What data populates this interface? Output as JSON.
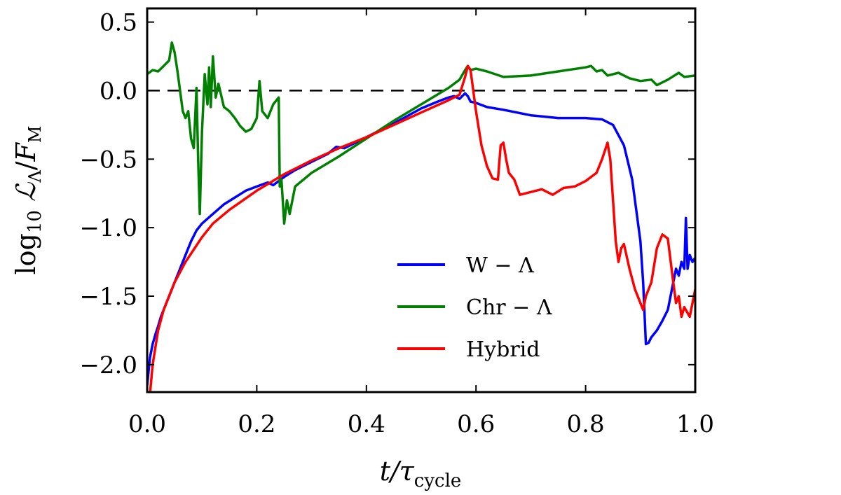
{
  "chart_data": {
    "type": "line",
    "title": "",
    "xlabel": {
      "base": "t/τ",
      "sub": "cycle"
    },
    "ylabel": {
      "prefix": "log",
      "prefix_sub": "10",
      "num": "ℒ",
      "num_sub": "Λ",
      "den": "F",
      "den_sub": "M"
    },
    "xlim": [
      0.0,
      1.0
    ],
    "ylim": [
      -2.2,
      0.6
    ],
    "xticks": [
      0.0,
      0.2,
      0.4,
      0.6,
      0.8,
      1.0
    ],
    "xtick_labels": [
      "0.0",
      "0.2",
      "0.4",
      "0.6",
      "0.8",
      "1.0"
    ],
    "yticks": [
      -2.0,
      -1.5,
      -1.0,
      -0.5,
      0.0,
      0.5
    ],
    "ytick_labels": [
      "−2.0",
      "−1.5",
      "−1.0",
      "−0.5",
      "0.0",
      "0.5"
    ],
    "reference_line": {
      "y": 0.0,
      "style": "dashed",
      "color": "#000000"
    },
    "legend": {
      "position": "lower-center"
    },
    "series": [
      {
        "name": "W − Λ",
        "color": "#0000ff",
        "points": [
          [
            0.0,
            -2.15
          ],
          [
            0.005,
            -1.95
          ],
          [
            0.01,
            -1.85
          ],
          [
            0.015,
            -1.78
          ],
          [
            0.02,
            -1.72
          ],
          [
            0.025,
            -1.65
          ],
          [
            0.03,
            -1.6
          ],
          [
            0.04,
            -1.5
          ],
          [
            0.05,
            -1.4
          ],
          [
            0.06,
            -1.3
          ],
          [
            0.07,
            -1.2
          ],
          [
            0.08,
            -1.1
          ],
          [
            0.09,
            -1.02
          ],
          [
            0.1,
            -0.97
          ],
          [
            0.12,
            -0.9
          ],
          [
            0.14,
            -0.83
          ],
          [
            0.16,
            -0.78
          ],
          [
            0.18,
            -0.73
          ],
          [
            0.2,
            -0.7
          ],
          [
            0.22,
            -0.67
          ],
          [
            0.23,
            -0.69
          ],
          [
            0.25,
            -0.63
          ],
          [
            0.27,
            -0.58
          ],
          [
            0.3,
            -0.52
          ],
          [
            0.33,
            -0.46
          ],
          [
            0.345,
            -0.41
          ],
          [
            0.36,
            -0.42
          ],
          [
            0.4,
            -0.34
          ],
          [
            0.45,
            -0.24
          ],
          [
            0.5,
            -0.13
          ],
          [
            0.53,
            -0.08
          ],
          [
            0.55,
            -0.05
          ],
          [
            0.56,
            -0.04
          ],
          [
            0.57,
            -0.06
          ],
          [
            0.58,
            -0.02
          ],
          [
            0.585,
            -0.04
          ],
          [
            0.59,
            -0.08
          ],
          [
            0.6,
            -0.09
          ],
          [
            0.62,
            -0.12
          ],
          [
            0.65,
            -0.14
          ],
          [
            0.7,
            -0.18
          ],
          [
            0.75,
            -0.2
          ],
          [
            0.8,
            -0.2
          ],
          [
            0.83,
            -0.21
          ],
          [
            0.85,
            -0.25
          ],
          [
            0.87,
            -0.4
          ],
          [
            0.885,
            -0.65
          ],
          [
            0.9,
            -1.1
          ],
          [
            0.905,
            -1.4
          ],
          [
            0.91,
            -1.85
          ],
          [
            0.915,
            -1.84
          ],
          [
            0.92,
            -1.8
          ],
          [
            0.93,
            -1.75
          ],
          [
            0.94,
            -1.68
          ],
          [
            0.95,
            -1.6
          ],
          [
            0.955,
            -1.5
          ],
          [
            0.96,
            -1.4
          ],
          [
            0.965,
            -1.3
          ],
          [
            0.97,
            -1.35
          ],
          [
            0.975,
            -1.25
          ],
          [
            0.98,
            -1.3
          ],
          [
            0.983,
            -0.93
          ],
          [
            0.986,
            -1.3
          ],
          [
            0.99,
            -1.2
          ],
          [
            0.995,
            -1.25
          ],
          [
            1.0,
            -1.22
          ]
        ]
      },
      {
        "name": "Chr − Λ",
        "color": "#008000",
        "points": [
          [
            0.0,
            0.12
          ],
          [
            0.01,
            0.15
          ],
          [
            0.02,
            0.14
          ],
          [
            0.03,
            0.18
          ],
          [
            0.04,
            0.22
          ],
          [
            0.045,
            0.35
          ],
          [
            0.05,
            0.28
          ],
          [
            0.055,
            0.15
          ],
          [
            0.06,
            0.0
          ],
          [
            0.065,
            -0.15
          ],
          [
            0.07,
            -0.2
          ],
          [
            0.075,
            -0.15
          ],
          [
            0.08,
            -0.35
          ],
          [
            0.085,
            -0.42
          ],
          [
            0.09,
            0.02
          ],
          [
            0.093,
            -0.5
          ],
          [
            0.096,
            -0.9
          ],
          [
            0.1,
            -0.3
          ],
          [
            0.105,
            0.12
          ],
          [
            0.11,
            -0.1
          ],
          [
            0.113,
            0.17
          ],
          [
            0.116,
            -0.12
          ],
          [
            0.12,
            0.25
          ],
          [
            0.125,
            -0.05
          ],
          [
            0.13,
            0.05
          ],
          [
            0.14,
            -0.12
          ],
          [
            0.15,
            -0.15
          ],
          [
            0.16,
            -0.2
          ],
          [
            0.17,
            -0.26
          ],
          [
            0.18,
            -0.3
          ],
          [
            0.19,
            -0.28
          ],
          [
            0.2,
            -0.2
          ],
          [
            0.205,
            0.07
          ],
          [
            0.21,
            -0.15
          ],
          [
            0.22,
            -0.2
          ],
          [
            0.23,
            -0.1
          ],
          [
            0.24,
            -0.05
          ],
          [
            0.242,
            -0.7
          ],
          [
            0.245,
            -0.65
          ],
          [
            0.25,
            -0.97
          ],
          [
            0.255,
            -0.8
          ],
          [
            0.26,
            -0.9
          ],
          [
            0.27,
            -0.7
          ],
          [
            0.3,
            -0.6
          ],
          [
            0.35,
            -0.48
          ],
          [
            0.4,
            -0.35
          ],
          [
            0.45,
            -0.22
          ],
          [
            0.5,
            -0.1
          ],
          [
            0.55,
            0.02
          ],
          [
            0.57,
            0.08
          ],
          [
            0.58,
            0.15
          ],
          [
            0.585,
            0.18
          ],
          [
            0.59,
            0.15
          ],
          [
            0.6,
            0.16
          ],
          [
            0.62,
            0.14
          ],
          [
            0.65,
            0.1
          ],
          [
            0.7,
            0.11
          ],
          [
            0.75,
            0.14
          ],
          [
            0.8,
            0.17
          ],
          [
            0.81,
            0.18
          ],
          [
            0.82,
            0.14
          ],
          [
            0.83,
            0.15
          ],
          [
            0.84,
            0.11
          ],
          [
            0.86,
            0.13
          ],
          [
            0.88,
            0.09
          ],
          [
            0.9,
            0.07
          ],
          [
            0.92,
            0.08
          ],
          [
            0.93,
            0.04
          ],
          [
            0.95,
            0.08
          ],
          [
            0.97,
            0.13
          ],
          [
            0.98,
            0.1
          ],
          [
            1.0,
            0.11
          ]
        ]
      },
      {
        "name": "Hybrid",
        "color": "#ff0000",
        "points": [
          [
            0.005,
            -2.22
          ],
          [
            0.01,
            -2.0
          ],
          [
            0.02,
            -1.75
          ],
          [
            0.03,
            -1.6
          ],
          [
            0.05,
            -1.4
          ],
          [
            0.07,
            -1.25
          ],
          [
            0.1,
            -1.07
          ],
          [
            0.12,
            -0.97
          ],
          [
            0.15,
            -0.87
          ],
          [
            0.2,
            -0.73
          ],
          [
            0.25,
            -0.61
          ],
          [
            0.3,
            -0.51
          ],
          [
            0.35,
            -0.42
          ],
          [
            0.4,
            -0.34
          ],
          [
            0.45,
            -0.25
          ],
          [
            0.5,
            -0.16
          ],
          [
            0.55,
            -0.07
          ],
          [
            0.57,
            -0.03
          ],
          [
            0.58,
            0.1
          ],
          [
            0.585,
            0.18
          ],
          [
            0.59,
            0.15
          ],
          [
            0.6,
            -0.15
          ],
          [
            0.61,
            -0.4
          ],
          [
            0.62,
            -0.55
          ],
          [
            0.63,
            -0.64
          ],
          [
            0.64,
            -0.65
          ],
          [
            0.645,
            -0.4
          ],
          [
            0.65,
            -0.38
          ],
          [
            0.655,
            -0.5
          ],
          [
            0.66,
            -0.6
          ],
          [
            0.67,
            -0.65
          ],
          [
            0.68,
            -0.76
          ],
          [
            0.7,
            -0.74
          ],
          [
            0.72,
            -0.72
          ],
          [
            0.74,
            -0.76
          ],
          [
            0.76,
            -0.71
          ],
          [
            0.78,
            -0.7
          ],
          [
            0.8,
            -0.66
          ],
          [
            0.82,
            -0.6
          ],
          [
            0.83,
            -0.5
          ],
          [
            0.84,
            -0.38
          ],
          [
            0.845,
            -0.5
          ],
          [
            0.85,
            -0.8
          ],
          [
            0.855,
            -1.1
          ],
          [
            0.86,
            -1.25
          ],
          [
            0.865,
            -1.15
          ],
          [
            0.87,
            -1.12
          ],
          [
            0.88,
            -1.3
          ],
          [
            0.89,
            -1.45
          ],
          [
            0.9,
            -1.55
          ],
          [
            0.905,
            -1.6
          ],
          [
            0.91,
            -1.5
          ],
          [
            0.92,
            -1.4
          ],
          [
            0.93,
            -1.15
          ],
          [
            0.94,
            -1.05
          ],
          [
            0.95,
            -1.08
          ],
          [
            0.96,
            -1.4
          ],
          [
            0.965,
            -1.55
          ],
          [
            0.97,
            -1.5
          ],
          [
            0.975,
            -1.65
          ],
          [
            0.98,
            -1.58
          ],
          [
            0.99,
            -1.65
          ],
          [
            1.0,
            -1.45
          ]
        ]
      }
    ]
  }
}
